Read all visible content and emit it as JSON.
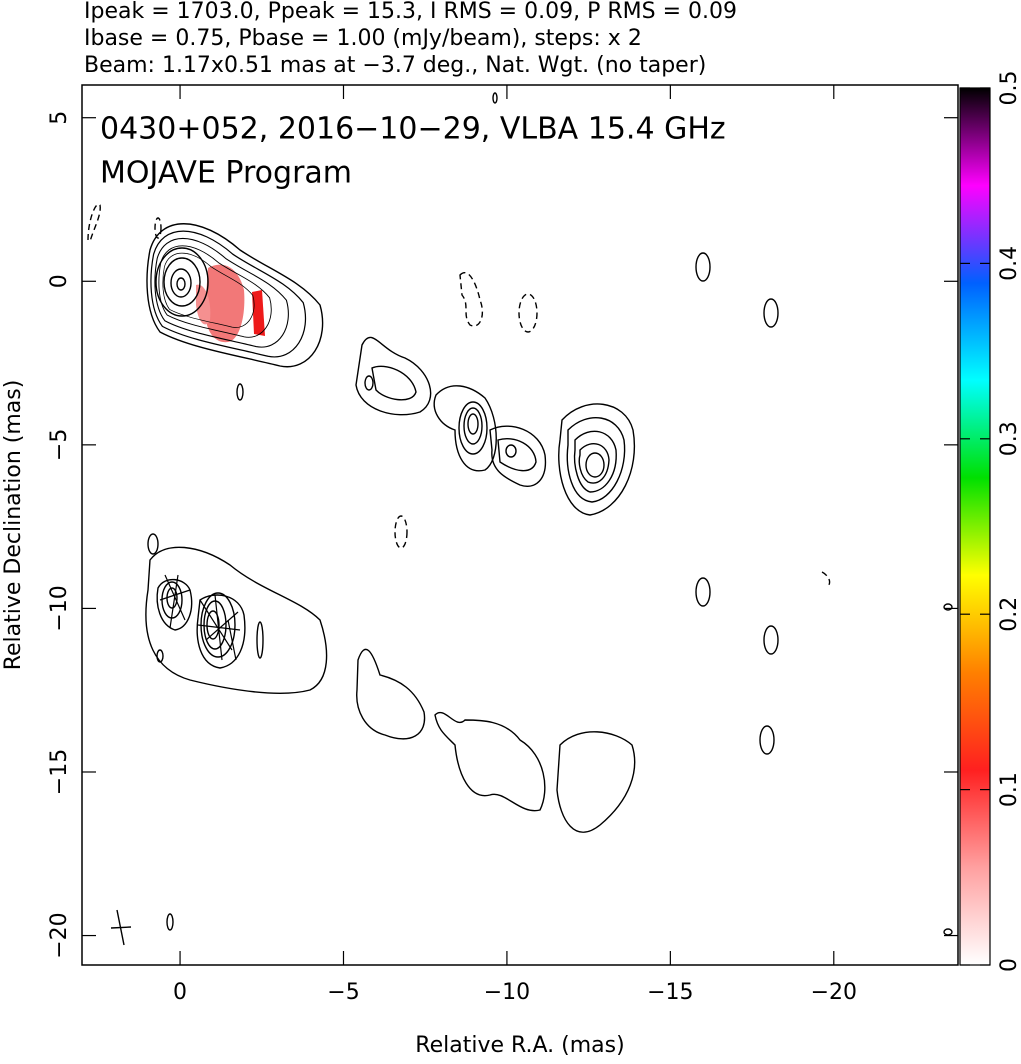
{
  "chart_data": {
    "type": "contour",
    "header": [
      "Ipeak = 1703.0, Ppeak = 15.3, I RMS = 0.09, P RMS = 0.09",
      "Ibase = 0.75, Pbase = 1.00 (mJy/beam), steps: x 2",
      "Beam: 1.17x0.51 mas at −3.7 deg., Nat. Wgt. (no taper)"
    ],
    "annotations": [
      "0430+052, 2016−10−29, VLBA 15.4 GHz",
      "MOJAVE Program"
    ],
    "x_label": "Relative R.A. (mas)",
    "y_label": "Relative Declination (mas)",
    "xlim": [
      3,
      -23.8
    ],
    "xticks": [
      0,
      {
        "value": -5,
        "label": "−5"
      },
      {
        "value": -10,
        "label": "−10"
      },
      {
        "value": -15,
        "label": "−15"
      },
      {
        "value": -20,
        "label": "−20"
      }
    ],
    "ylim": [
      -20.9,
      6
    ],
    "yticks": [
      {
        "value": -20,
        "label": "−20"
      },
      {
        "value": -15,
        "label": "−15"
      },
      {
        "value": -10,
        "label": "−10"
      },
      {
        "value": -5,
        "label": "−5"
      },
      0,
      5
    ],
    "colorbar": {
      "lim": [
        0,
        0.5
      ],
      "ticks": [
        0,
        0.1,
        0.2,
        0.3,
        0.4,
        0.5
      ],
      "colormap": [
        "#ffffff",
        "#ffa0a0",
        "#ff2020",
        "#ff8000",
        "#ffff00",
        "#00e000",
        "#00ffff",
        "#0060ff",
        "#ff00ff",
        "#000000"
      ]
    }
  }
}
